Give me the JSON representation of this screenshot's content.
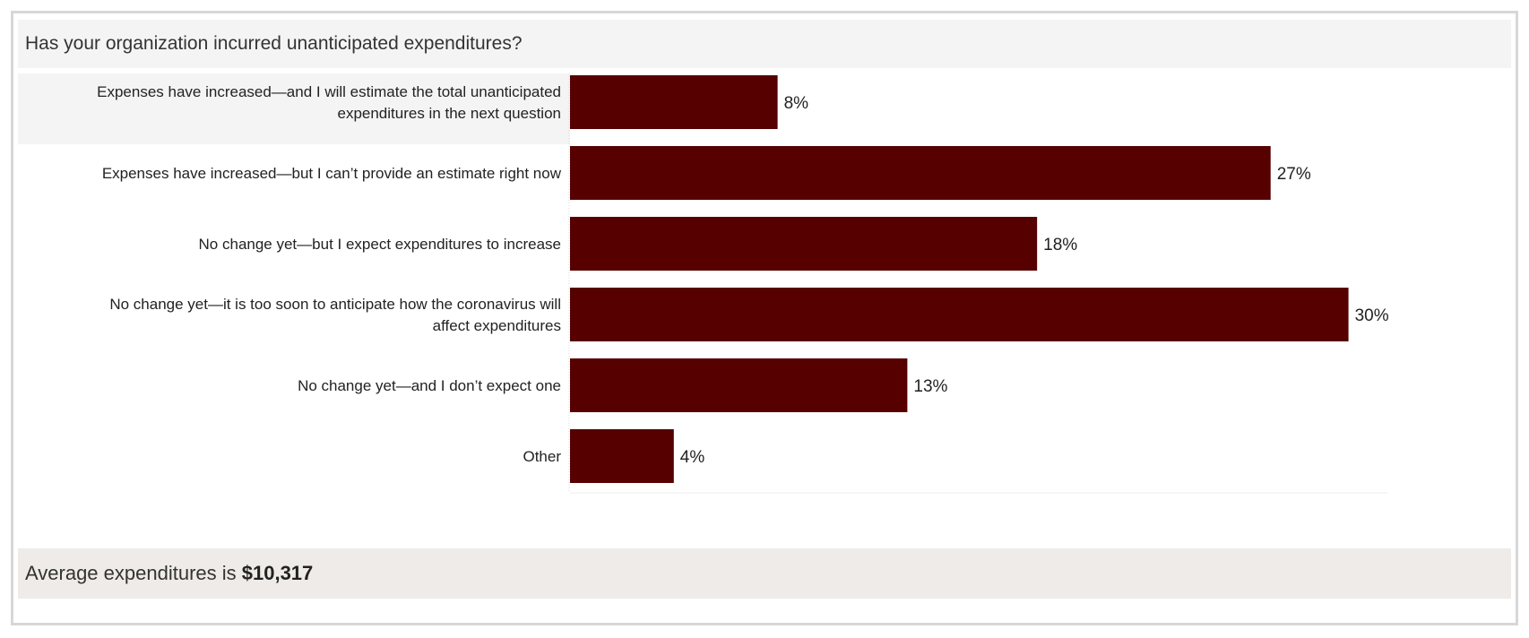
{
  "header": {
    "title": "Has your organization incurred unanticipated expenditures?"
  },
  "chart_data": {
    "type": "bar",
    "orientation": "horizontal",
    "categories": [
      [
        "Expenses have increased—and I will estimate the total unanticipated",
        "expenditures in the next question"
      ],
      [
        "Expenses have increased—but I can’t provide an estimate right now"
      ],
      [
        "No change yet—but I expect expenditures to increase"
      ],
      [
        "No change yet—it is too soon to anticipate how the coronavirus will",
        "affect expenditures"
      ],
      [
        "No change yet—and I don’t expect one"
      ],
      [
        "Other"
      ]
    ],
    "values": [
      8,
      27,
      18,
      30,
      13,
      4
    ],
    "value_labels": [
      "8%",
      "27%",
      "18%",
      "30%",
      "13%",
      "4%"
    ],
    "xlim": [
      0,
      31.5
    ],
    "highlighted_index": 0,
    "grid": false,
    "bar_color": "#560000",
    "highlight_color": "#f4f4f4"
  },
  "footer": {
    "prefix": "Average expenditures is ",
    "amount": "$10,317"
  }
}
